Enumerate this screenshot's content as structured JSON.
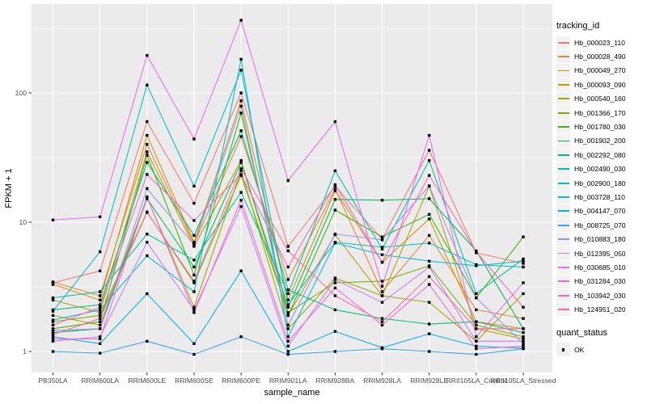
{
  "chart_data": {
    "type": "line",
    "title": "",
    "xlabel": "sample_name",
    "ylabel": "FPKM + 1",
    "y_scale": "log10",
    "y_ticks": [
      1,
      10,
      100
    ],
    "y_minor_ticks": [
      3.162,
      31.62,
      316.2
    ],
    "ylim": [
      0.85,
      500
    ],
    "grid": true,
    "panel_bg": "#EBEBEB",
    "grid_color": "#FFFFFF",
    "point_color": "#000000",
    "axis_text_color": "#4D4D4D",
    "axis_title_color": "#000000",
    "categories": [
      "PB350LA",
      "RRIM600LA",
      "RRIM600LE",
      "RRIM600SE",
      "RRIM600PE",
      "RRIM901LA",
      "RRIM928BA",
      "RRIM928LA",
      "RRIM928LE",
      "RRII105LA_Control",
      "RRII105LA_Stressed"
    ],
    "legend": {
      "title": "tracking_id",
      "position": "right"
    },
    "quant_legend": {
      "title": "quant_status",
      "items": [
        {
          "label": "OK",
          "symbol": "black-square"
        }
      ]
    },
    "series": [
      {
        "name": "Hb_000023_110",
        "color": "#F8766D",
        "values": [
          3.4,
          4.2,
          60,
          14,
          100,
          6.5,
          19,
          7.4,
          36,
          5.8,
          4.8
        ]
      },
      {
        "name": "Hb_000028_490",
        "color": "#EA8331",
        "values": [
          3.45,
          2.7,
          40,
          6.8,
          46,
          3.6,
          18,
          2.9,
          7.9,
          2.1,
          1.8
        ]
      },
      {
        "name": "Hb_000049_270",
        "color": "#D89000",
        "values": [
          3.3,
          2.5,
          47,
          7.0,
          87,
          2.5,
          17.5,
          4.9,
          10.6,
          1.7,
          1.5
        ]
      },
      {
        "name": "Hb_000093_090",
        "color": "#C09B00",
        "values": [
          2.5,
          2.0,
          35,
          6.5,
          30,
          1.9,
          8.0,
          2.7,
          19,
          1.5,
          1.25
        ]
      },
      {
        "name": "Hb_000540_160",
        "color": "#A3A500",
        "values": [
          1.9,
          1.6,
          15.5,
          2.2,
          25,
          1.5,
          3.7,
          2.7,
          2.4,
          1.2,
          2.8
        ]
      },
      {
        "name": "Hb_001366_170",
        "color": "#7CAE00",
        "values": [
          1.7,
          1.9,
          12,
          3.4,
          23,
          2.0,
          3.4,
          3.5,
          4.6,
          1.6,
          1.3
        ]
      },
      {
        "name": "Hb_001780_030",
        "color": "#39B600",
        "values": [
          1.5,
          1.7,
          33,
          3.9,
          70,
          1.9,
          12.4,
          7.7,
          11.5,
          2.6,
          7.7
        ]
      },
      {
        "name": "Hb_001902_200",
        "color": "#00BB4E",
        "values": [
          1.4,
          1.5,
          15.2,
          4.5,
          29,
          2.2,
          15,
          14.8,
          15.2,
          6.0,
          1.5
        ]
      },
      {
        "name": "Hb_002292_080",
        "color": "#00BF7D",
        "values": [
          2.1,
          2.3,
          29,
          7.9,
          51,
          3.0,
          2.1,
          1.8,
          1.63,
          1.7,
          1.4
        ]
      },
      {
        "name": "Hb_002490_030",
        "color": "#00C1A3",
        "values": [
          2.6,
          2.9,
          8.1,
          5.1,
          17,
          2.8,
          25,
          6.2,
          30,
          2.8,
          5.2
        ]
      },
      {
        "name": "Hb_002900_180",
        "color": "#00BFC4",
        "values": [
          2.05,
          5.9,
          115,
          19,
          150,
          2.3,
          7.0,
          6.4,
          6.9,
          4.7,
          4.5
        ]
      },
      {
        "name": "Hb_003728_110",
        "color": "#00BAE0",
        "values": [
          1.75,
          2.1,
          5.5,
          2.9,
          182,
          1.3,
          6.9,
          5.6,
          5.0,
          4.6,
          5.0
        ]
      },
      {
        "name": "Hb_004147_070",
        "color": "#00B0F6",
        "values": [
          1.3,
          1.15,
          2.8,
          1.15,
          4.2,
          1.0,
          1.43,
          1.07,
          1.37,
          1.1,
          1.06
        ]
      },
      {
        "name": "Hb_008725_070",
        "color": "#35A2FF",
        "values": [
          1.0,
          0.97,
          1.2,
          0.95,
          1.3,
          0.95,
          1.0,
          1.05,
          1.0,
          0.95,
          1.05
        ]
      },
      {
        "name": "Hb_010883_180",
        "color": "#9590FF",
        "values": [
          1.45,
          1.5,
          18.2,
          6.7,
          79,
          1.6,
          8.1,
          7.3,
          19.1,
          2.6,
          1.15
        ]
      },
      {
        "name": "Hb_012395_050",
        "color": "#C77CFF",
        "values": [
          1.2,
          1.3,
          7.0,
          2.1,
          13.2,
          1.1,
          3.6,
          2.4,
          4.5,
          1.2,
          1.2
        ]
      },
      {
        "name": "Hb_030685_010",
        "color": "#E76BF3",
        "values": [
          10.4,
          11,
          195,
          44,
          365,
          21,
          60,
          3.2,
          47,
          1.3,
          3.4
        ]
      },
      {
        "name": "Hb_031284_030",
        "color": "#FA62DB",
        "values": [
          1.25,
          1.25,
          15.7,
          2.0,
          14.8,
          1.2,
          3.1,
          1.6,
          3.3,
          1.05,
          1.1
        ]
      },
      {
        "name": "Hb_103942_030",
        "color": "#FF62BC",
        "values": [
          1.6,
          2.2,
          23.4,
          10.3,
          23.4,
          4.5,
          19.5,
          4.9,
          23,
          5.9,
          2.2
        ]
      },
      {
        "name": "Hb_124951_020",
        "color": "#FF6A98",
        "values": [
          1.35,
          1.8,
          11.9,
          3.5,
          26,
          6.0,
          2.7,
          1.7,
          3.8,
          1.5,
          1.5
        ]
      }
    ]
  }
}
